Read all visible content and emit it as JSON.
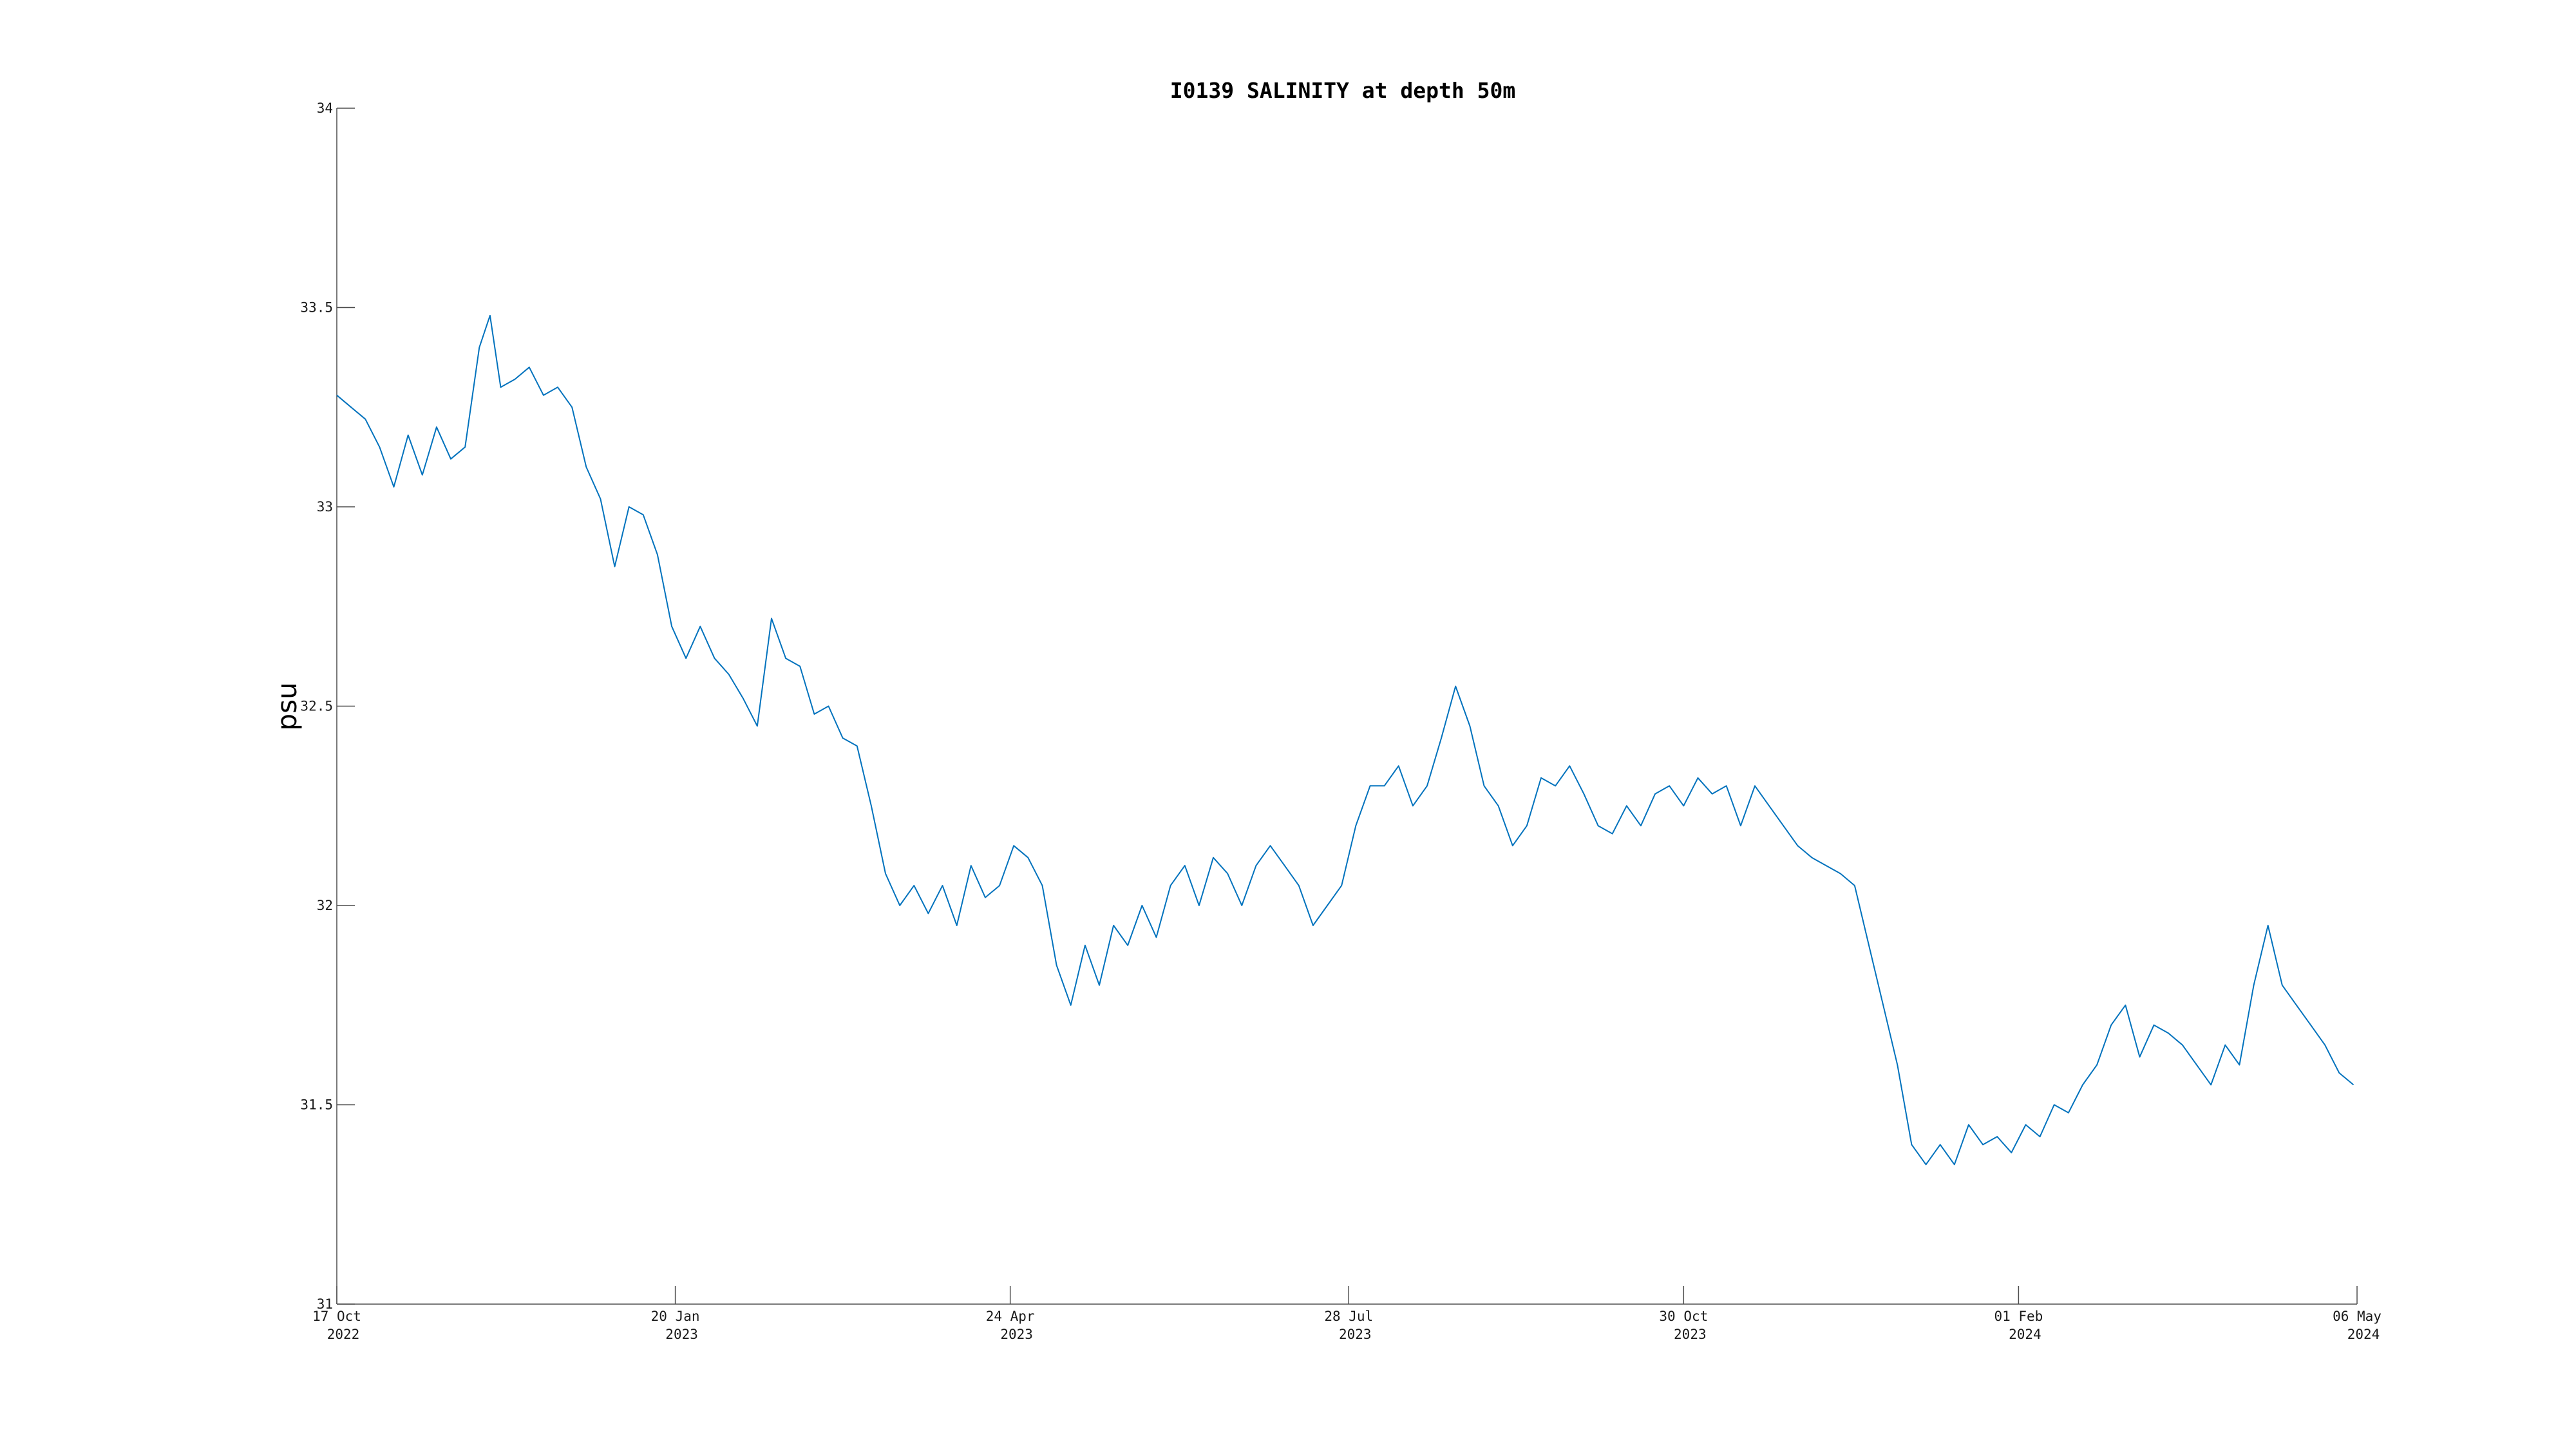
{
  "chart_data": {
    "type": "line",
    "title": "I0139 SALINITY at depth 50m",
    "xlabel": "",
    "ylabel": "psu",
    "xlim": [
      "2022-10-17",
      "2024-05-06"
    ],
    "ylim": [
      31,
      34
    ],
    "grid": false,
    "legend": "none",
    "yticks": [
      {
        "value": 31,
        "label": "31"
      },
      {
        "value": 31.5,
        "label": "31.5"
      },
      {
        "value": 32,
        "label": "32"
      },
      {
        "value": 32.5,
        "label": "32.5"
      },
      {
        "value": 33,
        "label": "33"
      },
      {
        "value": 33.5,
        "label": "33.5"
      },
      {
        "value": 34,
        "label": "34"
      }
    ],
    "xticks": [
      {
        "date": "2022-10-17",
        "line1": "17 Oct",
        "line2": "2022"
      },
      {
        "date": "2023-01-20",
        "line1": "20 Jan",
        "line2": "2023"
      },
      {
        "date": "2023-04-24",
        "line1": "24 Apr",
        "line2": "2023"
      },
      {
        "date": "2023-07-28",
        "line1": "28 Jul",
        "line2": "2023"
      },
      {
        "date": "2023-10-30",
        "line1": "30 Oct",
        "line2": "2023"
      },
      {
        "date": "2024-02-01",
        "line1": "01 Feb",
        "line2": "2024"
      },
      {
        "date": "2024-05-06",
        "line1": "06 May",
        "line2": "2024"
      }
    ],
    "series": [
      {
        "color": "#0072BD",
        "points": [
          [
            "2022-10-17",
            33.28
          ],
          [
            "2022-10-21",
            33.25
          ],
          [
            "2022-10-25",
            33.22
          ],
          [
            "2022-10-29",
            33.15
          ],
          [
            "2022-11-02",
            33.05
          ],
          [
            "2022-11-06",
            33.18
          ],
          [
            "2022-11-10",
            33.08
          ],
          [
            "2022-11-14",
            33.2
          ],
          [
            "2022-11-18",
            33.12
          ],
          [
            "2022-11-22",
            33.15
          ],
          [
            "2022-11-26",
            33.4
          ],
          [
            "2022-11-29",
            33.48
          ],
          [
            "2022-12-02",
            33.3
          ],
          [
            "2022-12-06",
            33.32
          ],
          [
            "2022-12-10",
            33.35
          ],
          [
            "2022-12-14",
            33.28
          ],
          [
            "2022-12-18",
            33.3
          ],
          [
            "2022-12-22",
            33.25
          ],
          [
            "2022-12-26",
            33.1
          ],
          [
            "2022-12-30",
            33.02
          ],
          [
            "2023-01-03",
            32.85
          ],
          [
            "2023-01-07",
            33.0
          ],
          [
            "2023-01-11",
            32.98
          ],
          [
            "2023-01-15",
            32.88
          ],
          [
            "2023-01-19",
            32.7
          ],
          [
            "2023-01-23",
            32.62
          ],
          [
            "2023-01-27",
            32.7
          ],
          [
            "2023-01-31",
            32.62
          ],
          [
            "2023-02-04",
            32.58
          ],
          [
            "2023-02-08",
            32.52
          ],
          [
            "2023-02-12",
            32.45
          ],
          [
            "2023-02-16",
            32.72
          ],
          [
            "2023-02-20",
            32.62
          ],
          [
            "2023-02-24",
            32.6
          ],
          [
            "2023-02-28",
            32.48
          ],
          [
            "2023-03-04",
            32.5
          ],
          [
            "2023-03-08",
            32.42
          ],
          [
            "2023-03-12",
            32.4
          ],
          [
            "2023-03-16",
            32.25
          ],
          [
            "2023-03-20",
            32.08
          ],
          [
            "2023-03-24",
            32.0
          ],
          [
            "2023-03-28",
            32.05
          ],
          [
            "2023-04-01",
            31.98
          ],
          [
            "2023-04-05",
            32.05
          ],
          [
            "2023-04-09",
            31.95
          ],
          [
            "2023-04-13",
            32.1
          ],
          [
            "2023-04-17",
            32.02
          ],
          [
            "2023-04-21",
            32.05
          ],
          [
            "2023-04-25",
            32.15
          ],
          [
            "2023-04-29",
            32.12
          ],
          [
            "2023-05-03",
            32.05
          ],
          [
            "2023-05-07",
            31.85
          ],
          [
            "2023-05-11",
            31.75
          ],
          [
            "2023-05-15",
            31.9
          ],
          [
            "2023-05-19",
            31.8
          ],
          [
            "2023-05-23",
            31.95
          ],
          [
            "2023-05-27",
            31.9
          ],
          [
            "2023-05-31",
            32.0
          ],
          [
            "2023-06-04",
            31.92
          ],
          [
            "2023-06-08",
            32.05
          ],
          [
            "2023-06-12",
            32.1
          ],
          [
            "2023-06-16",
            32.0
          ],
          [
            "2023-06-20",
            32.12
          ],
          [
            "2023-06-24",
            32.08
          ],
          [
            "2023-06-28",
            32.0
          ],
          [
            "2023-07-02",
            32.1
          ],
          [
            "2023-07-06",
            32.15
          ],
          [
            "2023-07-10",
            32.1
          ],
          [
            "2023-07-14",
            32.05
          ],
          [
            "2023-07-18",
            31.95
          ],
          [
            "2023-07-22",
            32.0
          ],
          [
            "2023-07-26",
            32.05
          ],
          [
            "2023-07-30",
            32.2
          ],
          [
            "2023-08-03",
            32.3
          ],
          [
            "2023-08-07",
            32.3
          ],
          [
            "2023-08-11",
            32.35
          ],
          [
            "2023-08-15",
            32.25
          ],
          [
            "2023-08-19",
            32.3
          ],
          [
            "2023-08-23",
            32.42
          ],
          [
            "2023-08-27",
            32.55
          ],
          [
            "2023-08-31",
            32.45
          ],
          [
            "2023-09-04",
            32.3
          ],
          [
            "2023-09-08",
            32.25
          ],
          [
            "2023-09-12",
            32.15
          ],
          [
            "2023-09-16",
            32.2
          ],
          [
            "2023-09-20",
            32.32
          ],
          [
            "2023-09-24",
            32.3
          ],
          [
            "2023-09-28",
            32.35
          ],
          [
            "2023-10-02",
            32.28
          ],
          [
            "2023-10-06",
            32.2
          ],
          [
            "2023-10-10",
            32.18
          ],
          [
            "2023-10-14",
            32.25
          ],
          [
            "2023-10-18",
            32.2
          ],
          [
            "2023-10-22",
            32.28
          ],
          [
            "2023-10-26",
            32.3
          ],
          [
            "2023-10-30",
            32.25
          ],
          [
            "2023-11-03",
            32.32
          ],
          [
            "2023-11-07",
            32.28
          ],
          [
            "2023-11-11",
            32.3
          ],
          [
            "2023-11-15",
            32.2
          ],
          [
            "2023-11-19",
            32.3
          ],
          [
            "2023-11-23",
            32.25
          ],
          [
            "2023-11-27",
            32.2
          ],
          [
            "2023-12-01",
            32.15
          ],
          [
            "2023-12-05",
            32.12
          ],
          [
            "2023-12-09",
            32.1
          ],
          [
            "2023-12-13",
            32.08
          ],
          [
            "2023-12-17",
            32.05
          ],
          [
            "2023-12-21",
            31.9
          ],
          [
            "2023-12-25",
            31.75
          ],
          [
            "2023-12-29",
            31.6
          ],
          [
            "2024-01-02",
            31.4
          ],
          [
            "2024-01-06",
            31.35
          ],
          [
            "2024-01-10",
            31.4
          ],
          [
            "2024-01-14",
            31.35
          ],
          [
            "2024-01-18",
            31.45
          ],
          [
            "2024-01-22",
            31.4
          ],
          [
            "2024-01-26",
            31.42
          ],
          [
            "2024-01-30",
            31.38
          ],
          [
            "2024-02-03",
            31.45
          ],
          [
            "2024-02-07",
            31.42
          ],
          [
            "2024-02-11",
            31.5
          ],
          [
            "2024-02-15",
            31.48
          ],
          [
            "2024-02-19",
            31.55
          ],
          [
            "2024-02-23",
            31.6
          ],
          [
            "2024-02-27",
            31.7
          ],
          [
            "2024-03-02",
            31.75
          ],
          [
            "2024-03-06",
            31.62
          ],
          [
            "2024-03-10",
            31.7
          ],
          [
            "2024-03-14",
            31.68
          ],
          [
            "2024-03-18",
            31.65
          ],
          [
            "2024-03-22",
            31.6
          ],
          [
            "2024-03-26",
            31.55
          ],
          [
            "2024-03-30",
            31.65
          ],
          [
            "2024-04-03",
            31.6
          ],
          [
            "2024-04-07",
            31.8
          ],
          [
            "2024-04-11",
            31.95
          ],
          [
            "2024-04-15",
            31.8
          ],
          [
            "2024-04-19",
            31.75
          ],
          [
            "2024-04-23",
            31.7
          ],
          [
            "2024-04-27",
            31.65
          ],
          [
            "2024-05-01",
            31.58
          ],
          [
            "2024-05-05",
            31.55
          ]
        ]
      }
    ]
  }
}
